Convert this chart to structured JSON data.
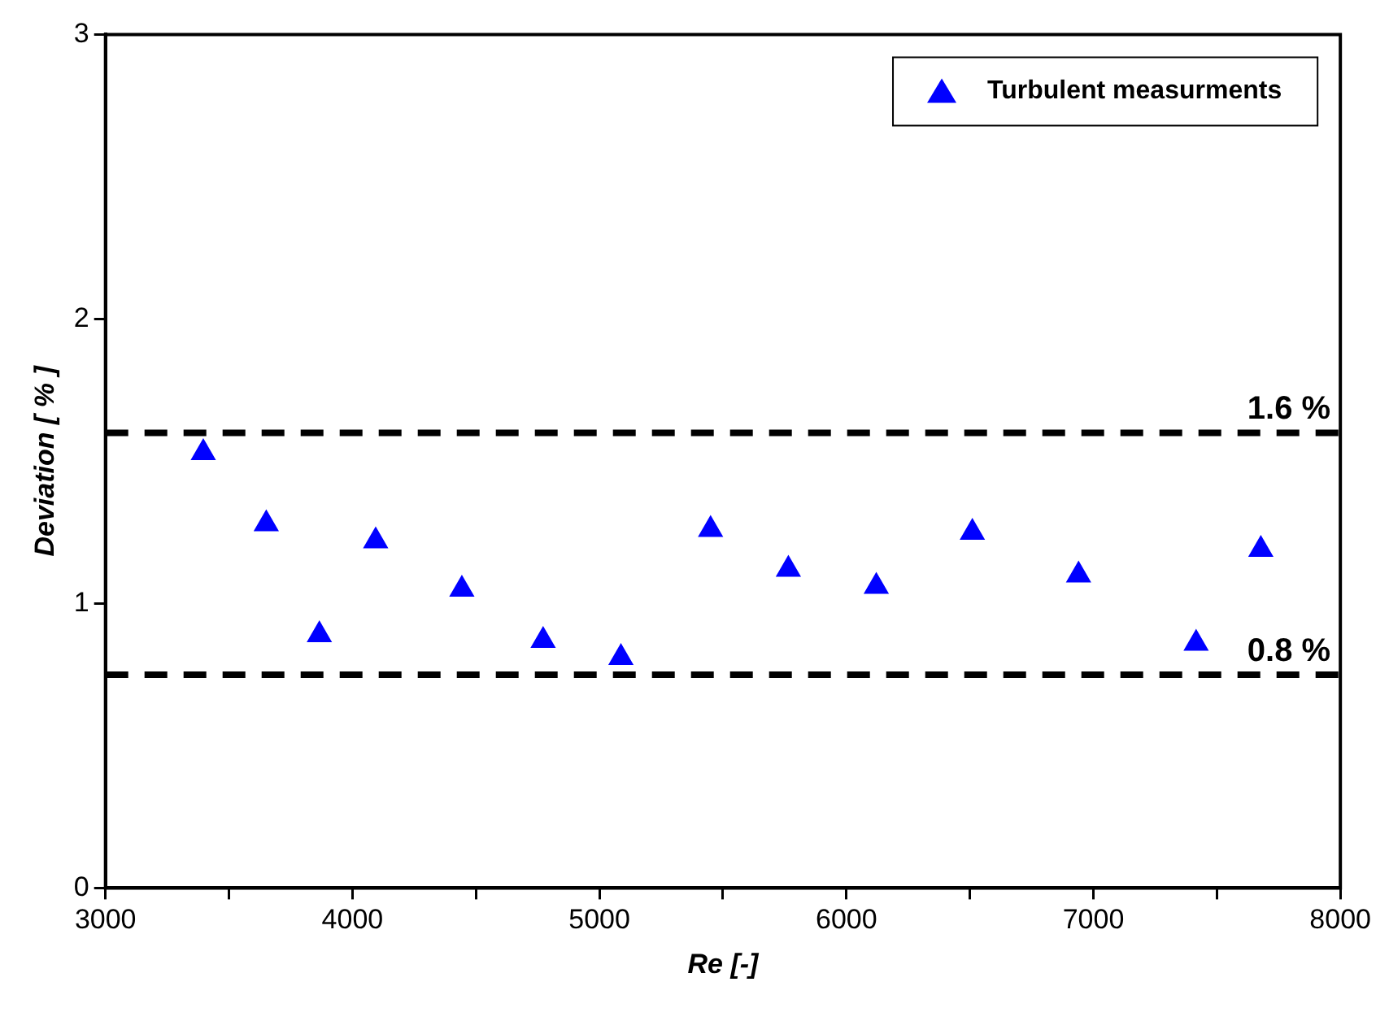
{
  "chart_data": {
    "type": "scatter",
    "xlabel": "Re [-]",
    "ylabel": "Deviation [ % ]",
    "series": [
      {
        "name": "Turbulent measurments",
        "color": "#0000ff",
        "x": [
          3396,
          3651,
          3866,
          4094,
          4443,
          4772,
          5087,
          5450,
          5765,
          6121,
          6510,
          6940,
          7416,
          7678
        ],
        "values": [
          1.53,
          1.28,
          0.89,
          1.22,
          1.05,
          0.87,
          0.81,
          1.26,
          1.12,
          1.06,
          1.25,
          1.1,
          0.86,
          1.19
        ]
      }
    ],
    "marker": "triangle",
    "legend": "top right",
    "grid": false,
    "xlim": [
      3000,
      8000
    ],
    "xticks": [
      3000,
      {
        "value": 3500,
        "label": null
      },
      4000,
      {
        "value": 4500,
        "label": null
      },
      5000,
      {
        "value": 5500,
        "label": null
      },
      6000,
      {
        "value": 6500,
        "label": null
      },
      7000,
      {
        "value": 7500,
        "label": null
      },
      8000
    ],
    "ylim": [
      0,
      3
    ],
    "yticks": [
      0,
      1,
      2,
      3
    ],
    "ref_lines": [
      {
        "axis": "y",
        "value": 1.6,
        "label": "1.6 %",
        "color": "#000000",
        "line_style": "dashed"
      },
      {
        "axis": "y",
        "value": 0.75,
        "label": "0.8 %",
        "color": "#000000",
        "line_style": "dashed"
      }
    ]
  }
}
